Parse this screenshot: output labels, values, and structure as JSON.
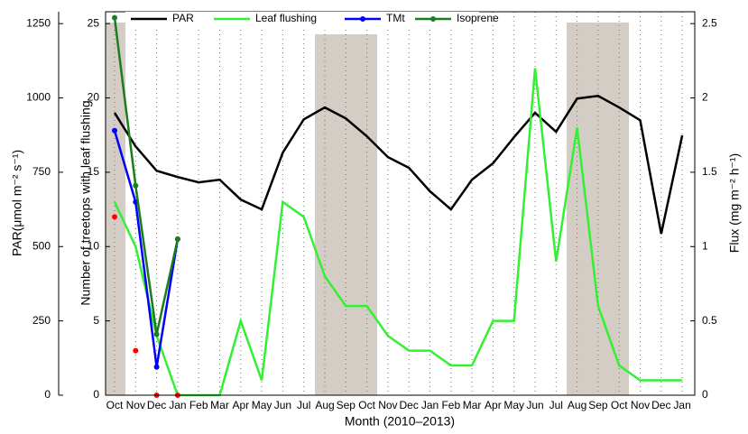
{
  "chart_data": {
    "type": "line",
    "xlabel": "Month (2010–2013)",
    "ylabel": "Number of treetops with leaf flushing",
    "y2label": "Flux (mg m⁻² h⁻¹)",
    "y3label": "PAR(μmol m⁻² s⁻¹)",
    "categories": [
      "Oct",
      "Nov",
      "Dec",
      "Jan",
      "Feb",
      "Mar",
      "Apr",
      "May",
      "Jun",
      "Jul",
      "Aug",
      "Sep",
      "Oct",
      "Nov",
      "Dec",
      "Jan",
      "Feb",
      "Mar",
      "Apr",
      "May",
      "Jun",
      "Jul",
      "Aug",
      "Sep",
      "Oct",
      "Nov",
      "Dec",
      "Jan"
    ],
    "ylim": [
      0,
      25.8
    ],
    "yticks": [
      0,
      5,
      10,
      15,
      20,
      25
    ],
    "y2lim": [
      0,
      2.58
    ],
    "y2ticks": [
      0,
      0.5,
      1,
      1.5,
      2,
      2.5
    ],
    "y3lim": [
      0,
      1290
    ],
    "y3ticks": [
      0,
      250,
      500,
      750,
      1000,
      1250
    ],
    "grid": true,
    "series": [
      {
        "name": "PAR",
        "color": "#000000",
        "axis": "y3",
        "markers": false,
        "values": [
          950,
          837,
          755,
          734,
          716,
          725,
          658,
          625,
          816,
          928,
          968,
          931,
          871,
          801,
          765,
          686,
          625,
          725,
          780,
          868,
          950,
          886,
          998,
          1007,
          968,
          925,
          543,
          874
        ]
      },
      {
        "name": "Leaf flushing",
        "color": "#33f033",
        "axis": "y",
        "markers": false,
        "values": [
          13,
          10,
          4,
          0,
          0,
          0,
          5,
          1,
          13,
          12,
          8,
          6,
          6,
          4,
          3,
          3,
          2,
          2,
          5,
          5,
          22,
          9,
          18,
          6,
          2,
          1,
          1,
          1
        ]
      },
      {
        "name": "TMt",
        "color": "#0000ff",
        "axis": "y2",
        "markers": true,
        "values": [
          1.78,
          1.3,
          0.19,
          1.05,
          null,
          null,
          null,
          null,
          null,
          null,
          null,
          null,
          null,
          null,
          null,
          null,
          null,
          null,
          null,
          null,
          null,
          null,
          null,
          null,
          null,
          null,
          null,
          null
        ]
      },
      {
        "name": "Isoprene",
        "color": "#1a7f1a",
        "axis": "y2",
        "markers": true,
        "values": [
          2.54,
          1.41,
          0.41,
          1.05,
          null,
          null,
          null,
          null,
          null,
          null,
          null,
          null,
          null,
          null,
          null,
          null,
          null,
          null,
          null,
          null,
          null,
          null,
          null,
          null,
          null,
          null,
          null,
          null
        ]
      },
      {
        "color": "#ff0000",
        "axis": "y2",
        "markers": true,
        "line": false,
        "values": [
          1.2,
          0.3,
          0,
          0,
          null,
          null,
          null,
          null,
          null,
          null,
          null,
          null,
          null,
          null,
          null,
          null,
          null,
          null,
          null,
          null,
          null,
          null,
          null,
          null,
          null,
          null,
          null,
          null
        ]
      }
    ]
  }
}
